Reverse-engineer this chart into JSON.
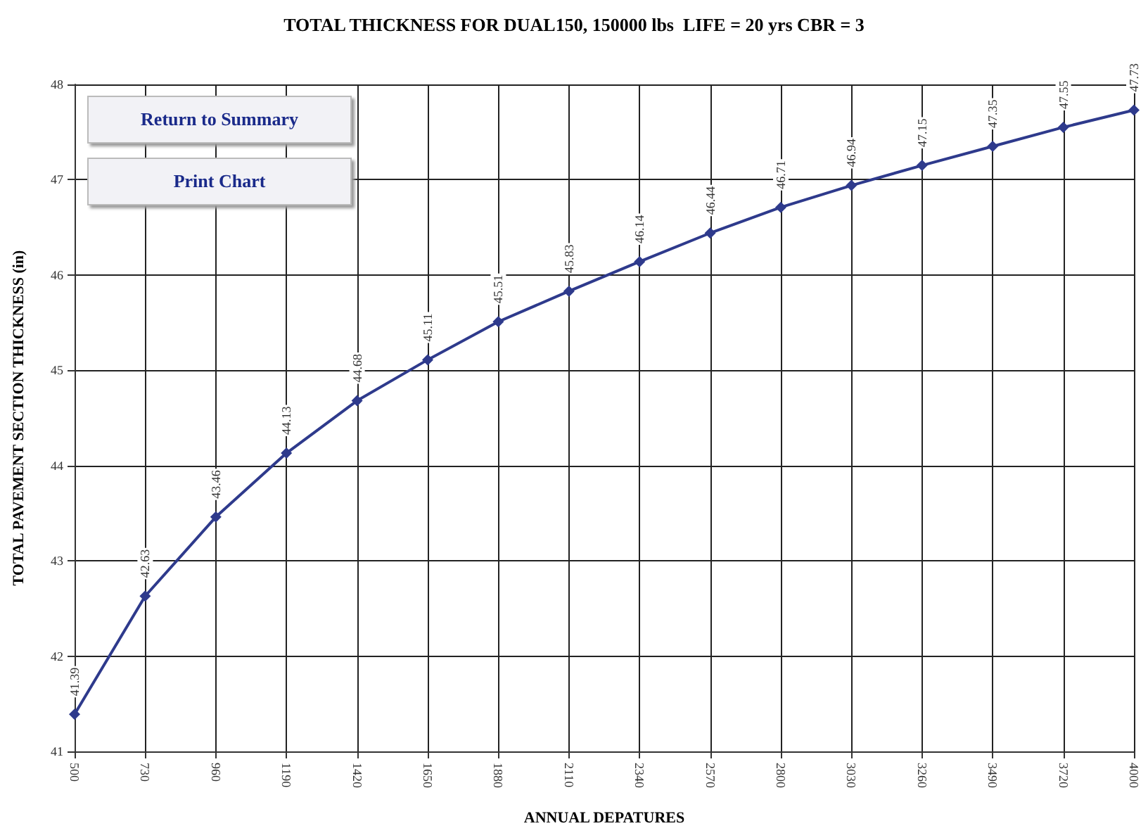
{
  "chart_data": {
    "type": "line",
    "title": "TOTAL THICKNESS FOR DUAL150, 150000 lbs  LIFE = 20 yrs CBR = 3",
    "xlabel": "ANNUAL DEPATURES",
    "ylabel": "TOTAL PAVEMENT SECTION THICKNESS (in)",
    "annotations": [
      "Return to Summary",
      "Print Chart"
    ],
    "categories": [
      "500",
      "730",
      "960",
      "1190",
      "1420",
      "1650",
      "1880",
      "2110",
      "2340",
      "2570",
      "2800",
      "3030",
      "3260",
      "3490",
      "3720",
      "4000"
    ],
    "series": [
      {
        "color": "#2e3a8c",
        "values": [
          41.39,
          42.63,
          43.46,
          44.13,
          44.68,
          45.11,
          45.51,
          45.83,
          46.14,
          46.44,
          46.71,
          46.94,
          47.15,
          47.35,
          47.55,
          47.73
        ]
      }
    ],
    "ylim": [
      41,
      48
    ],
    "yticks": [
      41,
      42,
      43,
      44,
      45,
      46,
      47,
      48
    ],
    "grid": true,
    "marker": "diamond",
    "line_style": "solid",
    "data_labels": true
  }
}
